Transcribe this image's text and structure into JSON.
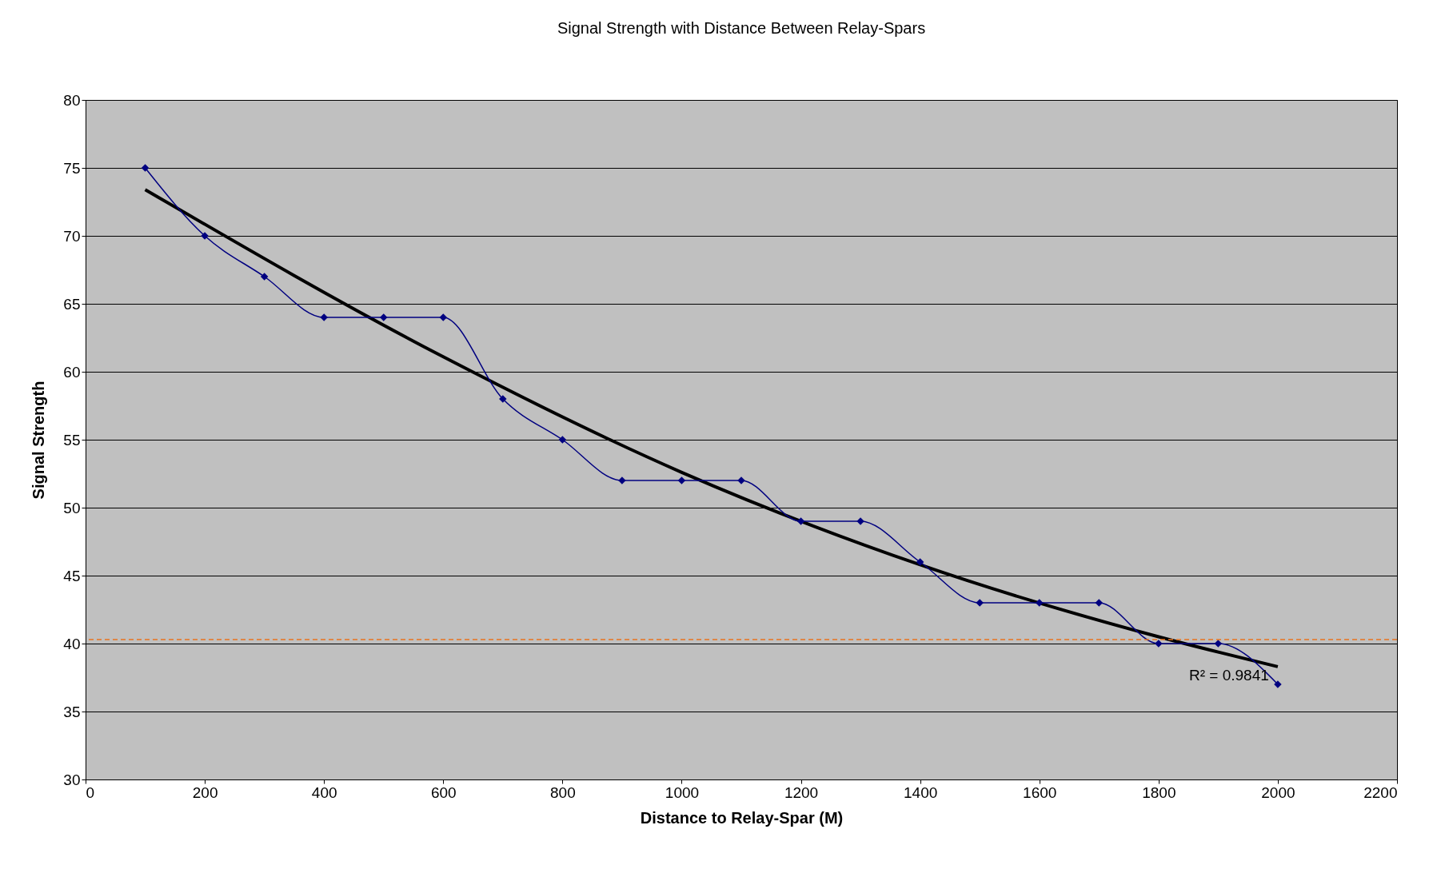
{
  "chart_data": {
    "type": "line",
    "title": "Signal Strength with Distance Between Relay-Spars",
    "xlabel": "Distance to Relay-Spar (M)",
    "ylabel": "Signal Strength",
    "x": [
      100,
      200,
      300,
      400,
      500,
      600,
      700,
      800,
      900,
      1000,
      1100,
      1200,
      1300,
      1400,
      1500,
      1600,
      1700,
      1800,
      1900,
      2000
    ],
    "series": [
      {
        "type": "line",
        "color": "#000080",
        "marker": "diamond",
        "values": [
          75,
          70,
          67,
          64,
          64,
          64,
          58,
          55,
          52,
          52,
          52,
          49,
          49,
          46,
          43,
          43,
          43,
          40,
          40,
          37
        ]
      },
      {
        "type": "line",
        "color": "#000000",
        "marker": "none",
        "x": [
          100,
          600,
          1000,
          1400,
          1800,
          2000
        ],
        "values": [
          73.4,
          61.1,
          52.6,
          45.8,
          40.5,
          38.3
        ]
      }
    ],
    "ref_lines": [
      {
        "axis": "y",
        "value": 40.3,
        "color": "#e8731f",
        "line_style": "dashed"
      }
    ],
    "annotations": [
      "R² = 0.9841"
    ],
    "xlim": [
      0,
      2200
    ],
    "xticks": [
      0,
      200,
      400,
      600,
      800,
      1000,
      1200,
      1400,
      1600,
      1800,
      2000,
      2200
    ],
    "ylim": [
      30,
      80
    ],
    "yticks": [
      30,
      35,
      40,
      45,
      50,
      55,
      60,
      65,
      70,
      75,
      80
    ],
    "grid": "y",
    "legend": false
  }
}
